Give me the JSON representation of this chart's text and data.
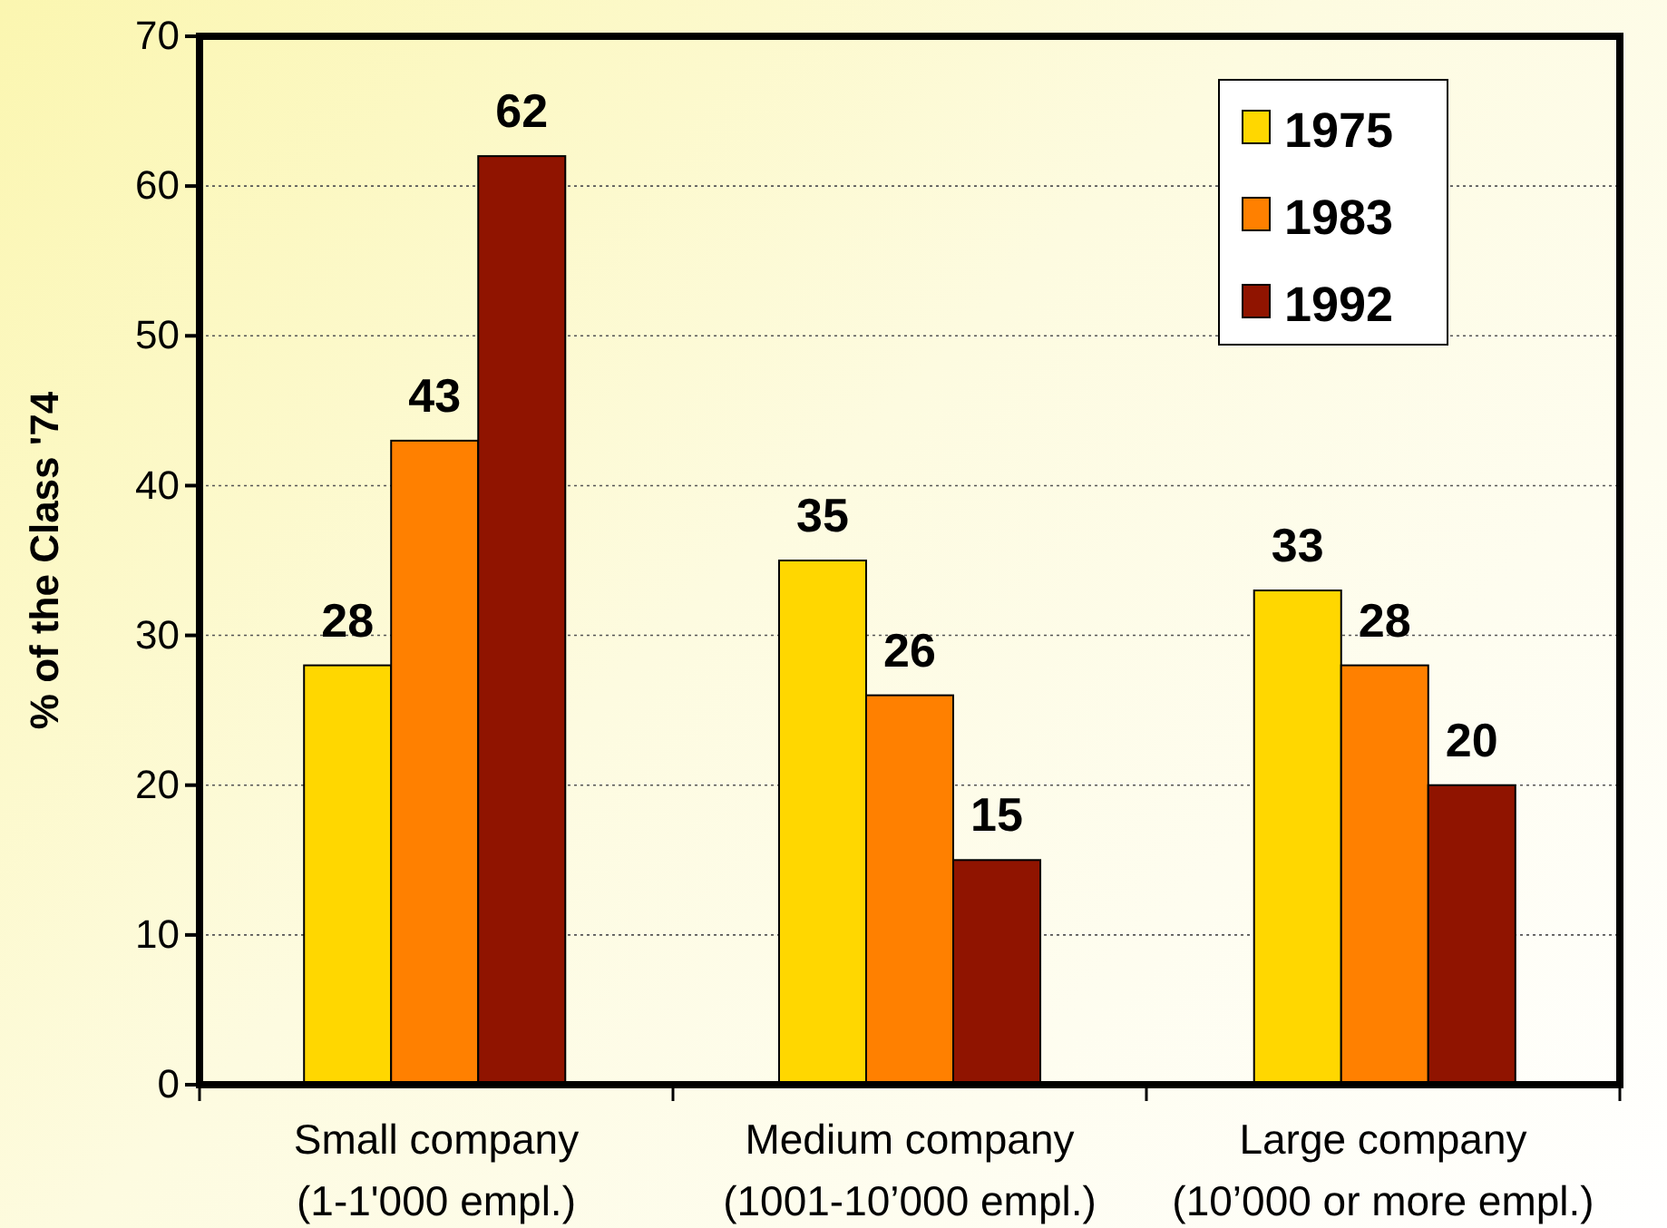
{
  "chart_data": {
    "type": "bar",
    "ylabel": "% of the Class '74",
    "categories": [
      "Small company\n(1-1'000 empl.)",
      "Medium company\n(1001-10’000 empl.)",
      "Large company\n(10’000 or more empl.)"
    ],
    "series": [
      {
        "name": "1975",
        "color": "#ffd700",
        "values": [
          28,
          35,
          33
        ]
      },
      {
        "name": "1983",
        "color": "#ff8000",
        "values": [
          43,
          26,
          28
        ]
      },
      {
        "name": "1992",
        "color": "#901400",
        "values": [
          62,
          15,
          20
        ]
      }
    ],
    "ylim": [
      0,
      70
    ],
    "yticks": [
      0,
      10,
      20,
      30,
      40,
      50,
      60,
      70
    ],
    "grid": "y",
    "legend": "top right",
    "data_labels": true
  }
}
